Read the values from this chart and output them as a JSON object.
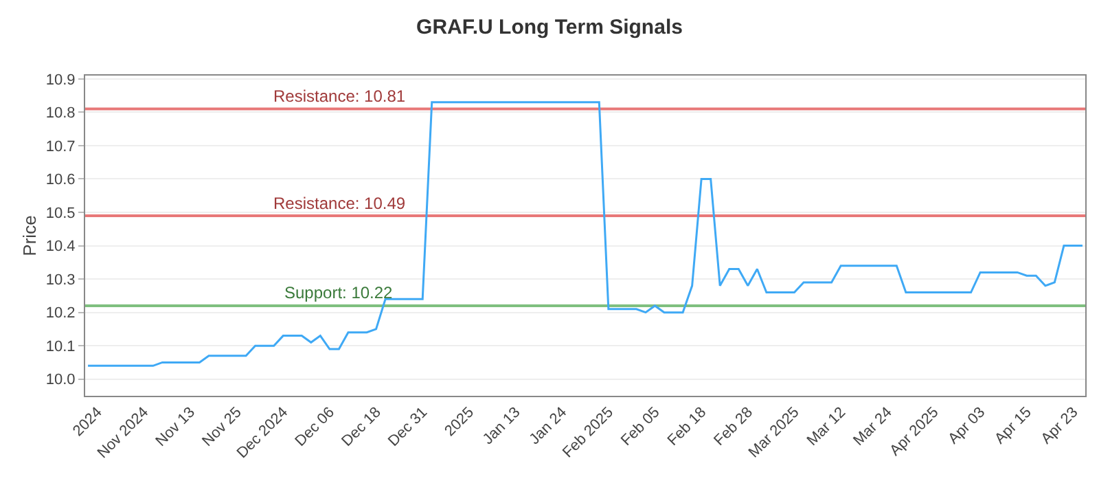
{
  "chart_data": {
    "type": "line",
    "title": "GRAF.U Long Term Signals",
    "ylabel": "Price",
    "categories": [
      null,
      "2024",
      null,
      null,
      null,
      null,
      "Nov 2024",
      null,
      null,
      null,
      null,
      "Nov 13",
      null,
      null,
      null,
      null,
      "Nov 25",
      null,
      null,
      null,
      null,
      "Dec 2024",
      null,
      null,
      null,
      null,
      "Dec 06",
      null,
      null,
      null,
      null,
      "Dec 18",
      null,
      null,
      null,
      null,
      "Dec 31",
      null,
      null,
      null,
      null,
      "2025",
      null,
      null,
      null,
      null,
      "Jan 13",
      null,
      null,
      null,
      null,
      "Jan 24",
      null,
      null,
      null,
      null,
      "Feb 2025",
      null,
      null,
      null,
      null,
      "Feb 05",
      null,
      null,
      null,
      null,
      "Feb 18",
      null,
      null,
      null,
      null,
      "Feb 28",
      null,
      null,
      null,
      null,
      "Mar 2025",
      null,
      null,
      null,
      null,
      "Mar 12",
      null,
      null,
      null,
      null,
      "Mar 24",
      null,
      null,
      null,
      null,
      "Apr 2025",
      null,
      null,
      null,
      null,
      "Apr 03",
      null,
      null,
      null,
      null,
      "Apr 15",
      null,
      null,
      null,
      null,
      "Apr 23",
      null
    ],
    "series": [
      {
        "color": "#3fa9f5",
        "values": [
          10.04,
          10.04,
          10.04,
          10.04,
          10.04,
          10.04,
          10.04,
          10.04,
          10.05,
          10.05,
          10.05,
          10.05,
          10.05,
          10.07,
          10.07,
          10.07,
          10.07,
          10.07,
          10.1,
          10.1,
          10.1,
          10.13,
          10.13,
          10.13,
          10.11,
          10.13,
          10.09,
          10.09,
          10.14,
          10.14,
          10.14,
          10.15,
          10.24,
          10.24,
          10.24,
          10.24,
          10.24,
          10.83,
          10.83,
          10.83,
          10.83,
          10.83,
          10.83,
          10.83,
          10.83,
          10.83,
          10.83,
          10.83,
          10.83,
          10.83,
          10.83,
          10.83,
          10.83,
          10.83,
          10.83,
          10.83,
          10.21,
          10.21,
          10.21,
          10.21,
          10.2,
          10.22,
          10.2,
          10.2,
          10.2,
          10.28,
          10.6,
          10.6,
          10.28,
          10.33,
          10.33,
          10.28,
          10.33,
          10.26,
          10.26,
          10.26,
          10.26,
          10.29,
          10.29,
          10.29,
          10.29,
          10.34,
          10.34,
          10.34,
          10.34,
          10.34,
          10.34,
          10.34,
          10.26,
          10.26,
          10.26,
          10.26,
          10.26,
          10.26,
          10.26,
          10.26,
          10.32,
          10.32,
          10.32,
          10.32,
          10.32,
          10.31,
          10.31,
          10.28,
          10.29,
          10.4,
          10.4,
          10.4
        ]
      }
    ],
    "ylim": [
      9.95,
      10.91
    ],
    "yticks": [
      {
        "value": 10.0,
        "label": "10.0"
      },
      10.1,
      10.2,
      10.3,
      10.4,
      10.5,
      10.6,
      10.7,
      10.8,
      10.9
    ],
    "grid": "y",
    "marker": "none",
    "line_style": "solid",
    "ref_lines": [
      {
        "axis": "y",
        "value": 10.81,
        "label": "Resistance: 10.81",
        "color": "#e87878"
      },
      {
        "axis": "y",
        "value": 10.49,
        "label": "Resistance: 10.49",
        "color": "#e87878"
      },
      {
        "axis": "y",
        "value": 10.22,
        "label": "Support: 10.22",
        "color": "#7fbf7f"
      }
    ]
  }
}
